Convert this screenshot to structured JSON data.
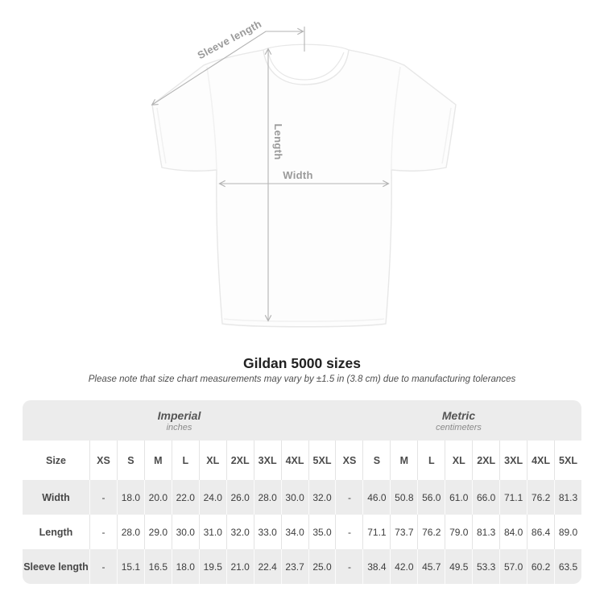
{
  "diagram": {
    "labels": {
      "sleeve_length": "Sleeve length",
      "length": "Length",
      "width": "Width"
    }
  },
  "chart_data": {
    "type": "table",
    "title": "Gildan 5000 sizes",
    "subtitle": "Please note that size chart measurements may vary by ±1.5 in (3.8 cm) due to manufacturing tolerances",
    "row_header": "Size",
    "groups": [
      {
        "label": "Imperial",
        "unit": "inches",
        "sizes": [
          "XS",
          "S",
          "M",
          "L",
          "XL",
          "2XL",
          "3XL",
          "4XL",
          "5XL"
        ]
      },
      {
        "label": "Metric",
        "unit": "centimeters",
        "sizes": [
          "XS",
          "S",
          "M",
          "L",
          "XL",
          "2XL",
          "3XL",
          "4XL",
          "5XL"
        ]
      }
    ],
    "rows": [
      {
        "label": "Width",
        "imperial": [
          "-",
          "18.0",
          "20.0",
          "22.0",
          "24.0",
          "26.0",
          "28.0",
          "30.0",
          "32.0"
        ],
        "metric": [
          "-",
          "46.0",
          "50.8",
          "56.0",
          "61.0",
          "66.0",
          "71.1",
          "76.2",
          "81.3"
        ]
      },
      {
        "label": "Length",
        "imperial": [
          "-",
          "28.0",
          "29.0",
          "30.0",
          "31.0",
          "32.0",
          "33.0",
          "34.0",
          "35.0"
        ],
        "metric": [
          "-",
          "71.1",
          "73.7",
          "76.2",
          "79.0",
          "81.3",
          "84.0",
          "86.4",
          "89.0"
        ]
      },
      {
        "label": "Sleeve length",
        "imperial": [
          "-",
          "15.1",
          "16.5",
          "18.0",
          "19.5",
          "21.0",
          "22.4",
          "23.7",
          "25.0"
        ],
        "metric": [
          "-",
          "38.4",
          "42.0",
          "45.7",
          "49.5",
          "53.3",
          "57.0",
          "60.2",
          "63.5"
        ]
      }
    ]
  },
  "colors": {
    "band_gray": "#ececec",
    "divider": "#e4e4e4",
    "arrow": "#b3b3b3",
    "dim_label": "#9a9a9a",
    "title_text": "#212121"
  }
}
